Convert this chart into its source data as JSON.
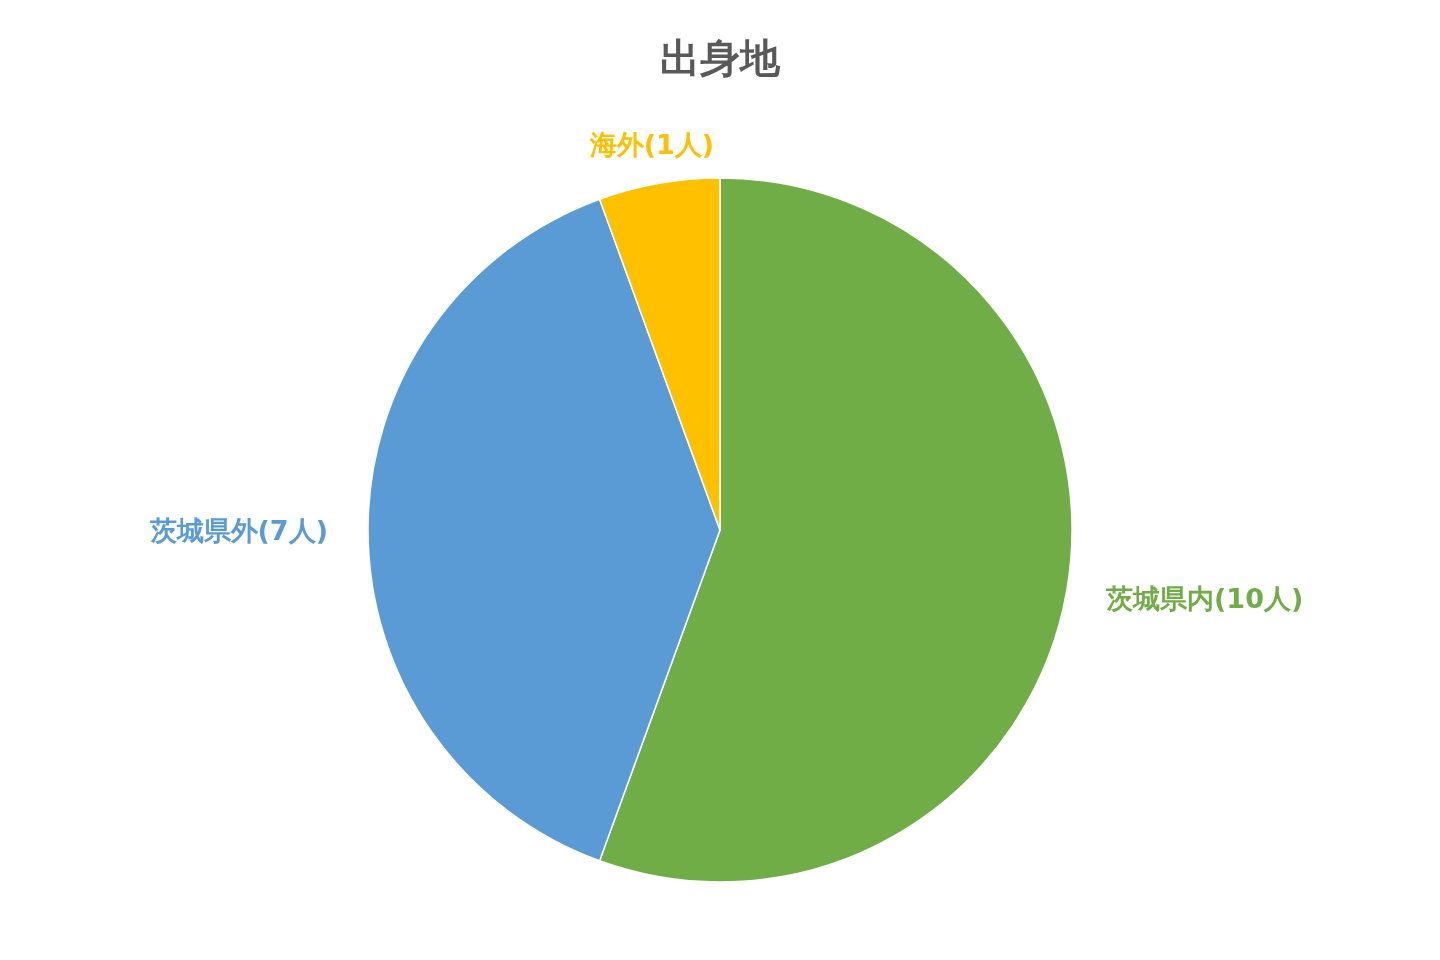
{
  "chart_data": {
    "type": "pie",
    "title": "出身地",
    "categories": [
      "茨城県内(10人)",
      "茨城県外(7人)",
      "海外(1人)"
    ],
    "values": [
      10,
      7,
      1
    ],
    "colors": [
      "#70ad47",
      "#5b9bd5",
      "#ffc000"
    ]
  }
}
